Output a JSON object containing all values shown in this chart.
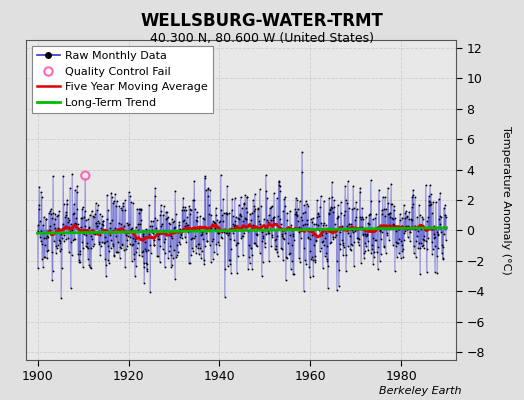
{
  "title": "WELLSBURG-WATER-TRMT",
  "subtitle": "40.300 N, 80.600 W (United States)",
  "ylabel": "Temperature Anomaly (°C)",
  "watermark": "Berkeley Earth",
  "xlim": [
    1897.5,
    1992
  ],
  "ylim": [
    -8.5,
    12.5
  ],
  "yticks": [
    -8,
    -6,
    -4,
    -2,
    0,
    2,
    4,
    6,
    8,
    10,
    12
  ],
  "xticks": [
    1900,
    1920,
    1940,
    1960,
    1980
  ],
  "background_color": "#e0e0e0",
  "plot_bg_color": "#e8e8e8",
  "grid_color": "#c8c8c8",
  "raw_color": "#3333cc",
  "stem_alpha": 0.85,
  "ma_color": "#dd0000",
  "ma_lw": 1.8,
  "trend_color": "#00bb00",
  "trend_lw": 2.0,
  "qc_color": "#ff69b4",
  "qc_x": 1910.5,
  "qc_y": 3.6,
  "title_fontsize": 12,
  "subtitle_fontsize": 9,
  "legend_fontsize": 8,
  "tick_labelsize": 9,
  "ylabel_fontsize": 8,
  "watermark_fontsize": 8
}
